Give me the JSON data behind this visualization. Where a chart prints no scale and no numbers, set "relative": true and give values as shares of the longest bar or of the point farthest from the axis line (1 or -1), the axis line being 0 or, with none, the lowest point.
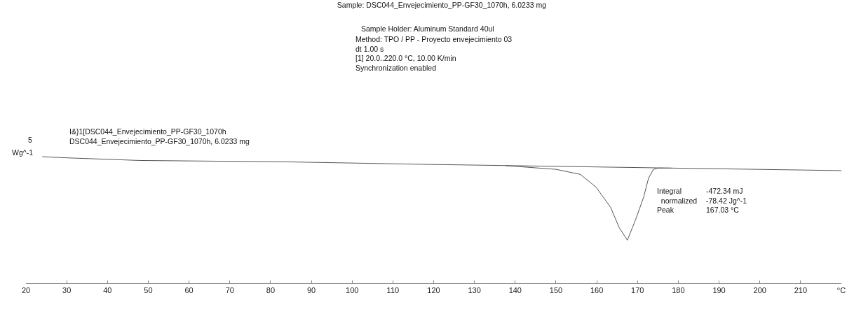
{
  "chart_data": {
    "type": "line",
    "title": "Sample: DSC044_Envejecimiento_PP-GF30_1070h, 6.0233 mg",
    "ylabel": "Wg^-1",
    "relative": true,
    "annotations": [
      "Sample Holder: Aluminum Standard 40ul",
      "Method: TPO / PP - Proyecto envejecimiento 03\ndt 1.00 s\n[1] 20.0..220.0 °C, 10.00 K/min\nSynchronization enabled",
      "I&}1[DSC044_Envejecimiento_PP-GF30_1070h\nDSC044_Envejecimiento_PP-GF30_1070h, 6.0233 mg",
      "Integral\n  normalized\nPeak",
      "-472.34 mJ\n-78.42 Jg^-1\n167.03 °C",
      "5"
    ],
    "xlim": [
      20,
      220
    ],
    "xticks": [
      20,
      30,
      40,
      50,
      60,
      70,
      80,
      90,
      100,
      110,
      120,
      130,
      140,
      150,
      160,
      170,
      180,
      190,
      200,
      210,
      {
        "value": 220,
        "label": "°C"
      }
    ],
    "series": [
      {
        "color": "#555555",
        "x": [
          24.0,
          30.8,
          48.0,
          82.4,
          116.8,
          137.4,
          150.0,
          156.0,
          159.8,
          163.4,
          165.5,
          167.5,
          169.5,
          171.5,
          172.7,
          173.9,
          175.1,
          178.3,
          220.0
        ],
        "values": [
          1.0,
          0.99,
          0.97,
          0.96,
          0.94,
          0.93,
          0.9,
          0.86,
          0.76,
          0.6,
          0.44,
          0.34,
          0.5,
          0.68,
          0.83,
          0.9,
          0.91,
          0.91,
          0.89
        ]
      },
      {
        "color": "#555555",
        "x": [
          137.4,
          178.3
        ],
        "values": [
          0.93,
          0.91
        ]
      }
    ]
  }
}
